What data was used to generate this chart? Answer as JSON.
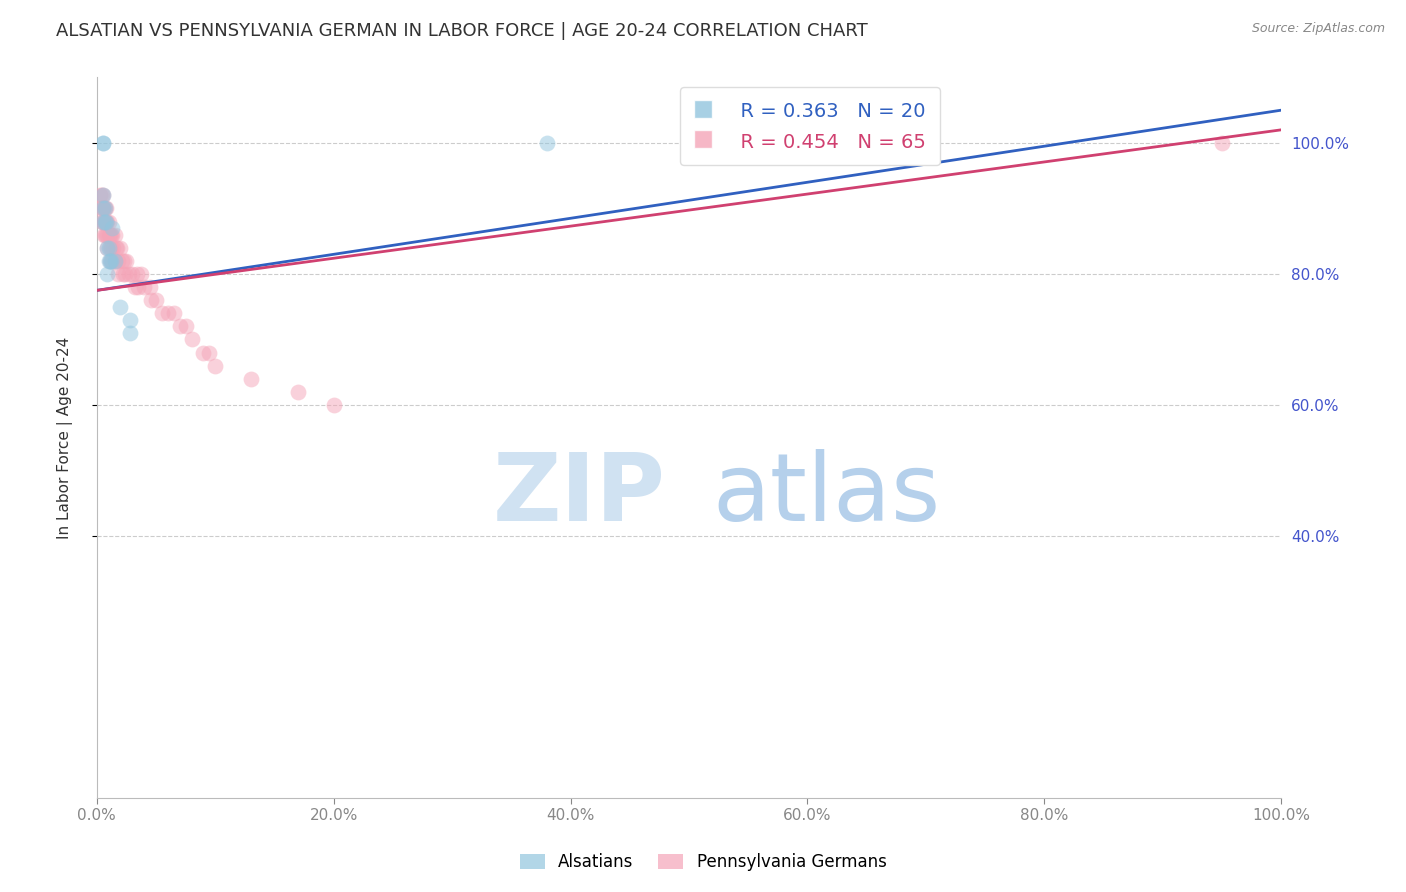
{
  "title": "ALSATIAN VS PENNSYLVANIA GERMAN IN LABOR FORCE | AGE 20-24 CORRELATION CHART",
  "source": "Source: ZipAtlas.com",
  "ylabel": "In Labor Force | Age 20-24",
  "watermark_zip": "ZIP",
  "watermark_atlas": "atlas",
  "legend_blue_r": "R = 0.363",
  "legend_blue_n": "N = 20",
  "legend_pink_r": "R = 0.454",
  "legend_pink_n": "N = 65",
  "blue_color": "#92c5de",
  "pink_color": "#f4a5b8",
  "blue_line_color": "#3060c0",
  "pink_line_color": "#d04070",
  "background_color": "#ffffff",
  "grid_color": "#cccccc",
  "axis_label_color": "#4455cc",
  "title_color": "#333333",
  "alsatians_x": [
    0.005,
    0.005,
    0.005,
    0.005,
    0.005,
    0.007,
    0.007,
    0.008,
    0.009,
    0.009,
    0.01,
    0.01,
    0.011,
    0.012,
    0.013,
    0.015,
    0.02,
    0.028,
    0.028,
    0.38
  ],
  "alsatians_y": [
    1.0,
    1.0,
    0.92,
    0.9,
    0.88,
    0.9,
    0.88,
    0.88,
    0.84,
    0.8,
    0.84,
    0.82,
    0.82,
    0.82,
    0.87,
    0.82,
    0.75,
    0.73,
    0.71,
    1.0
  ],
  "pa_german_x": [
    0.003,
    0.003,
    0.004,
    0.004,
    0.004,
    0.005,
    0.005,
    0.005,
    0.006,
    0.006,
    0.006,
    0.007,
    0.007,
    0.007,
    0.008,
    0.008,
    0.008,
    0.009,
    0.009,
    0.009,
    0.01,
    0.01,
    0.011,
    0.011,
    0.011,
    0.012,
    0.012,
    0.013,
    0.013,
    0.014,
    0.015,
    0.015,
    0.016,
    0.017,
    0.018,
    0.018,
    0.02,
    0.021,
    0.022,
    0.023,
    0.024,
    0.025,
    0.027,
    0.03,
    0.032,
    0.034,
    0.035,
    0.037,
    0.04,
    0.045,
    0.046,
    0.05,
    0.055,
    0.06,
    0.065,
    0.07,
    0.075,
    0.08,
    0.09,
    0.095,
    0.1,
    0.13,
    0.17,
    0.2,
    0.95
  ],
  "pa_german_y": [
    0.92,
    0.9,
    0.92,
    0.9,
    0.88,
    0.92,
    0.9,
    0.88,
    0.9,
    0.88,
    0.86,
    0.9,
    0.88,
    0.86,
    0.9,
    0.88,
    0.86,
    0.88,
    0.86,
    0.84,
    0.88,
    0.86,
    0.86,
    0.84,
    0.82,
    0.86,
    0.84,
    0.86,
    0.82,
    0.84,
    0.86,
    0.82,
    0.84,
    0.84,
    0.82,
    0.8,
    0.84,
    0.82,
    0.8,
    0.82,
    0.8,
    0.82,
    0.8,
    0.8,
    0.78,
    0.8,
    0.78,
    0.8,
    0.78,
    0.78,
    0.76,
    0.76,
    0.74,
    0.74,
    0.74,
    0.72,
    0.72,
    0.7,
    0.68,
    0.68,
    0.66,
    0.64,
    0.62,
    0.6,
    1.0
  ],
  "blue_trendline_x": [
    0.0,
    1.0
  ],
  "blue_trendline_y": [
    0.775,
    1.05
  ],
  "pink_trendline_x": [
    0.0,
    1.0
  ],
  "pink_trendline_y": [
    0.775,
    1.02
  ],
  "xlim": [
    0.0,
    1.0
  ],
  "ylim": [
    0.0,
    1.1
  ],
  "yticks": [
    0.4,
    0.6,
    0.8,
    1.0
  ],
  "ytick_labels": [
    "40.0%",
    "60.0%",
    "80.0%",
    "100.0%"
  ],
  "xticks": [
    0.0,
    0.2,
    0.4,
    0.6,
    0.8,
    1.0
  ],
  "xtick_labels": [
    "0.0%",
    "20.0%",
    "40.0%",
    "60.0%",
    "80.0%",
    "100.0%"
  ],
  "marker_size": 130,
  "marker_alpha": 0.5
}
